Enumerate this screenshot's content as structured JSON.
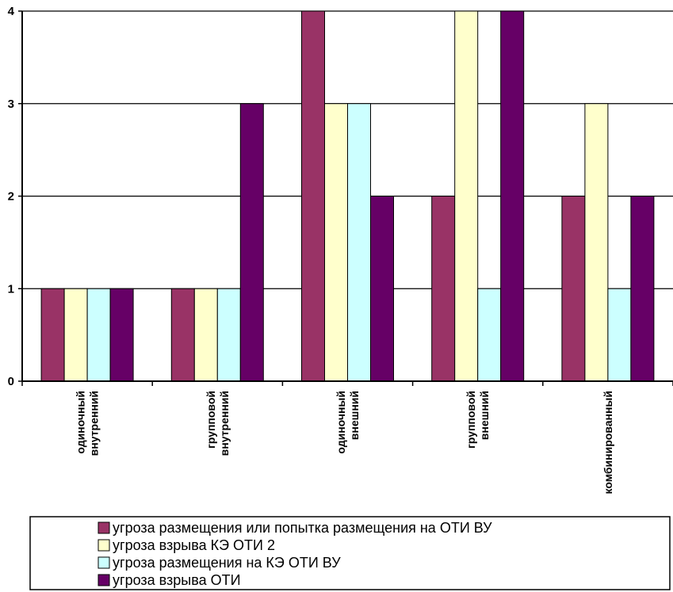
{
  "chart_data": {
    "type": "bar",
    "categories": [
      [
        "одиночный",
        "внутренний"
      ],
      [
        "групповой",
        "внутренний"
      ],
      [
        "одиночный",
        "внешний"
      ],
      [
        "групповой",
        "внешний"
      ],
      [
        "комбинированный"
      ]
    ],
    "series": [
      {
        "name": "угроза размещения или попытка размещения на ОТИ ВУ",
        "color": "#993366",
        "values": [
          1,
          1,
          4,
          2,
          2
        ]
      },
      {
        "name": "угроза взрыва КЭ ОТИ 2",
        "color": "#FFFFCC",
        "values": [
          1,
          1,
          3,
          4,
          3
        ]
      },
      {
        "name": "угроза размещения на КЭ ОТИ ВУ",
        "color": "#CCFFFF",
        "values": [
          1,
          1,
          3,
          1,
          1
        ]
      },
      {
        "name": "угроза взрыва ОТИ",
        "color": "#660066",
        "values": [
          1,
          3,
          2,
          4,
          2
        ]
      }
    ],
    "ylim": [
      0,
      4
    ],
    "yticks": [
      0,
      1,
      2,
      3,
      4
    ],
    "grid": true,
    "legend_position": "bottom"
  }
}
